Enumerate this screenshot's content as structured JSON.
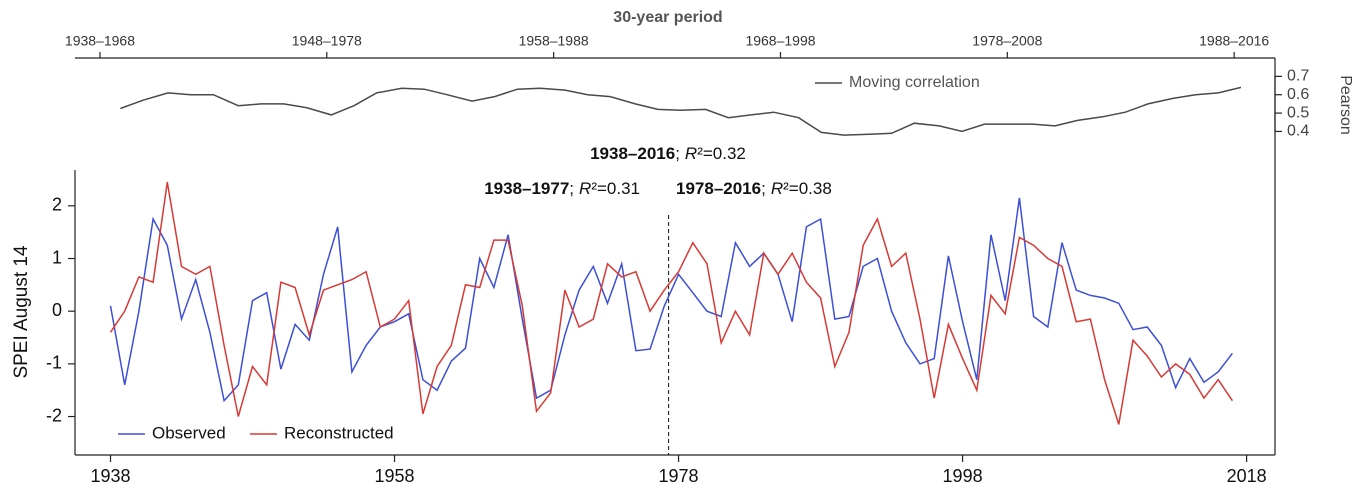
{
  "chart_data": [
    {
      "type": "line",
      "x_label": "30-year period",
      "y_label": "Pearson",
      "y_axis_side": "right",
      "xlim": [
        1936.9,
        1989.8
      ],
      "xticks": [
        {
          "value": 1938,
          "label": "1938–1968"
        },
        {
          "value": 1948,
          "label": "1948–1978"
        },
        {
          "value": 1958,
          "label": "1958–1988"
        },
        {
          "value": 1968,
          "label": "1968–1998"
        },
        {
          "value": 1978,
          "label": "1978–2008"
        },
        {
          "value": 1988,
          "label": "1988–2016"
        }
      ],
      "ylim": [
        0.19,
        0.8
      ],
      "yticks": [
        0.4,
        0.5,
        0.6,
        0.7
      ],
      "x": [
        1938.9,
        1939.9,
        1941.0,
        1942.0,
        1943.0,
        1944.1,
        1945.1,
        1946.1,
        1947.1,
        1948.2,
        1949.2,
        1950.2,
        1951.3,
        1952.3,
        1953.3,
        1954.4,
        1955.4,
        1956.4,
        1957.4,
        1958.5,
        1959.5,
        1960.5,
        1961.6,
        1962.6,
        1963.6,
        1964.7,
        1965.7,
        1966.7,
        1967.7,
        1968.8,
        1969.8,
        1970.8,
        1971.9,
        1972.9,
        1973.9,
        1975.0,
        1976.0,
        1977.0,
        1978.0,
        1979.1,
        1980.1,
        1981.1,
        1982.2,
        1983.2,
        1984.2,
        1985.3,
        1986.3,
        1987.3,
        1988.3
      ],
      "series": [
        {
          "name": "Moving correlation",
          "color": "#4a4a4a",
          "values": [
            0.525,
            0.57,
            0.61,
            0.6,
            0.6,
            0.54,
            0.55,
            0.55,
            0.53,
            0.49,
            0.54,
            0.61,
            0.635,
            0.63,
            0.6,
            0.565,
            0.59,
            0.63,
            0.635,
            0.625,
            0.6,
            0.59,
            0.55,
            0.52,
            0.515,
            0.52,
            0.475,
            0.49,
            0.505,
            0.475,
            0.395,
            0.38,
            0.385,
            0.39,
            0.445,
            0.43,
            0.4,
            0.44,
            0.44,
            0.44,
            0.43,
            0.46,
            0.48,
            0.505,
            0.55,
            0.58,
            0.6,
            0.61,
            0.64
          ]
        }
      ],
      "legend": "upper right"
    },
    {
      "type": "line",
      "y_label": "SPEI August 14",
      "xlim": [
        1935.5,
        2020
      ],
      "xticks": [
        1938,
        1958,
        1978,
        1998,
        2018
      ],
      "ylim": [
        -2.73,
        2.68
      ],
      "yticks": [
        -2,
        -1,
        0,
        1,
        2
      ],
      "x": [
        1938,
        1939,
        1940,
        1941,
        1942,
        1943,
        1944,
        1945,
        1946,
        1947,
        1948,
        1949,
        1950,
        1951,
        1952,
        1953,
        1954,
        1955,
        1956,
        1957,
        1958,
        1959,
        1960,
        1961,
        1962,
        1963,
        1964,
        1965,
        1966,
        1967,
        1968,
        1969,
        1970,
        1971,
        1972,
        1973,
        1974,
        1975,
        1976,
        1977,
        1978,
        1979,
        1980,
        1981,
        1982,
        1983,
        1984,
        1985,
        1986,
        1987,
        1988,
        1989,
        1990,
        1991,
        1992,
        1993,
        1994,
        1995,
        1996,
        1997,
        1998,
        1999,
        2000,
        2001,
        2002,
        2003,
        2004,
        2005,
        2006,
        2007,
        2008,
        2009,
        2010,
        2011,
        2012,
        2013,
        2014,
        2015,
        2016,
        2017
      ],
      "series": [
        {
          "name": "Observed",
          "color": "#3d4fd6",
          "values": [
            0.1,
            -1.4,
            0.0,
            1.75,
            1.25,
            -0.15,
            0.6,
            -0.4,
            -1.7,
            -1.4,
            0.2,
            0.35,
            -1.1,
            -0.25,
            -0.55,
            0.7,
            1.6,
            -1.15,
            -0.65,
            -0.3,
            -0.2,
            -0.05,
            -1.3,
            -1.5,
            -0.95,
            -0.7,
            1.0,
            0.45,
            1.45,
            -0.15,
            -1.65,
            -1.5,
            -0.45,
            0.4,
            0.85,
            0.15,
            0.9,
            -0.75,
            -0.72,
            0.1,
            0.7,
            0.35,
            0.0,
            -0.1,
            1.3,
            0.85,
            1.1,
            0.7,
            -0.2,
            1.6,
            1.75,
            -0.15,
            -0.1,
            0.85,
            1.0,
            0.0,
            -0.6,
            -1.0,
            -0.9,
            1.05,
            -0.2,
            -1.3,
            1.45,
            0.2,
            2.15,
            -0.1,
            -0.3,
            1.3,
            0.4,
            0.3,
            0.25,
            0.15,
            -0.35,
            -0.3,
            -0.65,
            -1.45,
            -0.9,
            -1.35,
            -1.15,
            -0.8
          ]
        },
        {
          "name": "Reconstructed",
          "color": "#d63a35",
          "values": [
            -0.4,
            0.0,
            0.65,
            0.55,
            2.45,
            0.85,
            0.7,
            0.85,
            -0.65,
            -2.0,
            -1.05,
            -1.4,
            0.55,
            0.45,
            -0.45,
            0.4,
            0.5,
            0.6,
            0.75,
            -0.3,
            -0.15,
            0.2,
            -1.95,
            -1.05,
            -0.65,
            0.5,
            0.45,
            1.35,
            1.35,
            0.1,
            -1.9,
            -1.55,
            0.4,
            -0.3,
            -0.15,
            0.9,
            0.65,
            0.75,
            0.0,
            0.4,
            0.75,
            1.3,
            0.9,
            -0.6,
            0.0,
            -0.45,
            1.1,
            0.7,
            1.1,
            0.55,
            0.25,
            -1.05,
            -0.4,
            1.25,
            1.75,
            0.85,
            1.1,
            -0.15,
            -1.65,
            -0.25,
            -0.9,
            -1.5,
            0.3,
            -0.05,
            1.4,
            1.25,
            1.0,
            0.85,
            -0.2,
            -0.15,
            -1.3,
            -2.15,
            -0.55,
            -0.85,
            -1.25,
            -1.0,
            -1.2,
            -1.65,
            -1.3,
            -1.7
          ]
        }
      ],
      "split_x": 1977.3,
      "annotations": [
        [
          "1938–2016",
          ";",
          "R",
          "²=0.32"
        ],
        [
          "1938–1977",
          ";",
          "R",
          "²=0.31"
        ],
        [
          "1978–2016",
          ";",
          "R",
          "²=0.38"
        ]
      ],
      "legend": "lower left"
    }
  ]
}
